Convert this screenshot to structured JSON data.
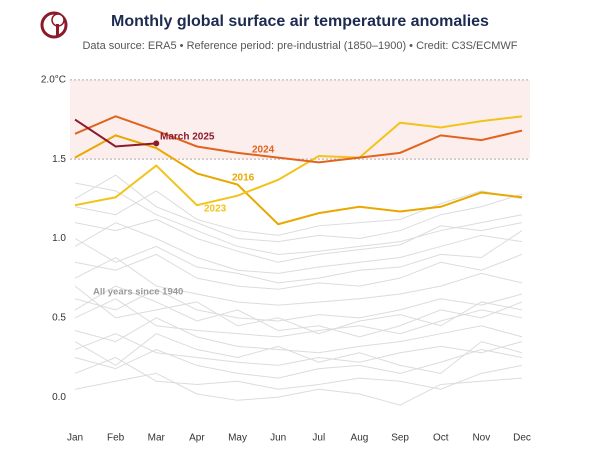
{
  "chart_data": {
    "type": "line",
    "title": "Monthly global surface air temperature anomalies",
    "subtitle": "Data source: ERA5 • Reference period: pre-industrial (1850–1900) • Credit: C3S/ECMWF",
    "categories": [
      "Jan",
      "Feb",
      "Mar",
      "Apr",
      "May",
      "Jun",
      "Jul",
      "Aug",
      "Sep",
      "Oct",
      "Nov",
      "Dec"
    ],
    "ylim": [
      -0.1,
      2.1
    ],
    "yticks": [
      {
        "value": 0,
        "label": "0.0"
      },
      0.5,
      {
        "value": 1,
        "label": "1.0"
      },
      1.5,
      {
        "value": 2,
        "label": "2.0°C"
      }
    ],
    "band": [
      1.5,
      2.0
    ],
    "series": [
      {
        "name": "2016",
        "color": "#e8a800",
        "values": [
          1.51,
          1.65,
          1.57,
          1.41,
          1.34,
          1.09,
          1.16,
          1.2,
          1.17,
          1.2,
          1.29,
          1.26
        ]
      },
      {
        "name": "2023",
        "color": "#f2c31a",
        "values": [
          1.21,
          1.26,
          1.46,
          1.21,
          1.27,
          1.37,
          1.52,
          1.51,
          1.73,
          1.7,
          1.74,
          1.77
        ]
      },
      {
        "name": "2024",
        "color": "#e0641e",
        "values": [
          1.66,
          1.77,
          1.68,
          1.58,
          1.54,
          1.51,
          1.48,
          1.51,
          1.54,
          1.65,
          1.62,
          1.68
        ]
      },
      {
        "name": "March 2025",
        "color": "#8b1a2b",
        "values": [
          1.75,
          1.58,
          1.6,
          null,
          null,
          null,
          null,
          null,
          null,
          null,
          null,
          null
        ]
      }
    ],
    "background": {
      "label": "All years since 1940",
      "color": "#dcdcdc",
      "values": [
        [
          1.35,
          1.3,
          1.15,
          1.05,
          0.95,
          0.9,
          0.92,
          0.95,
          0.98,
          1.05,
          1.1,
          1.15
        ],
        [
          1.25,
          1.4,
          1.2,
          1.1,
          1.0,
          0.98,
          1.02,
          1.0,
          1.05,
          1.15,
          1.2,
          1.28
        ],
        [
          1.1,
          1.05,
          1.12,
          1.0,
          0.92,
          0.85,
          0.9,
          0.93,
          0.96,
          1.08,
          1.05,
          1.1
        ],
        [
          0.95,
          1.1,
          1.0,
          0.88,
          0.8,
          0.78,
          0.82,
          0.85,
          0.88,
          0.95,
          1.02,
          0.98
        ],
        [
          0.85,
          0.8,
          0.9,
          0.75,
          0.7,
          0.68,
          0.72,
          0.7,
          0.75,
          0.85,
          0.8,
          0.9
        ],
        [
          0.75,
          0.88,
          0.7,
          0.65,
          0.6,
          0.58,
          0.6,
          0.62,
          0.65,
          0.7,
          0.78,
          0.72
        ],
        [
          0.62,
          0.55,
          0.68,
          0.55,
          0.5,
          0.48,
          0.52,
          0.5,
          0.55,
          0.62,
          0.58,
          0.65
        ],
        [
          0.5,
          0.62,
          0.45,
          0.42,
          0.4,
          0.38,
          0.42,
          0.45,
          0.4,
          0.48,
          0.55,
          0.5
        ],
        [
          0.42,
          0.35,
          0.5,
          0.38,
          0.32,
          0.3,
          0.28,
          0.32,
          0.35,
          0.4,
          0.45,
          0.38
        ],
        [
          0.3,
          0.4,
          0.28,
          0.25,
          0.22,
          0.2,
          0.25,
          0.22,
          0.28,
          0.32,
          0.28,
          0.35
        ],
        [
          0.25,
          0.18,
          0.3,
          0.2,
          0.15,
          0.12,
          0.18,
          0.2,
          0.15,
          0.22,
          0.3,
          0.25
        ],
        [
          0.15,
          0.25,
          0.1,
          0.08,
          0.1,
          0.05,
          0.08,
          0.12,
          0.1,
          0.05,
          0.15,
          0.2
        ],
        [
          0.05,
          0.1,
          0.15,
          0.02,
          -0.02,
          0.0,
          0.05,
          0.02,
          -0.05,
          0.08,
          0.1,
          0.12
        ],
        [
          0.7,
          0.5,
          0.55,
          0.6,
          0.45,
          0.5,
          0.4,
          0.48,
          0.52,
          0.45,
          0.6,
          0.55
        ],
        [
          1.0,
          0.85,
          0.95,
          0.82,
          0.78,
          0.72,
          0.75,
          0.8,
          0.82,
          0.9,
          0.88,
          1.05
        ],
        [
          0.55,
          0.7,
          0.6,
          0.48,
          0.55,
          0.42,
          0.45,
          0.38,
          0.45,
          0.55,
          0.5,
          0.6
        ],
        [
          0.35,
          0.2,
          0.4,
          0.3,
          0.25,
          0.32,
          0.22,
          0.28,
          0.2,
          0.15,
          0.35,
          0.28
        ],
        [
          1.2,
          1.15,
          1.3,
          1.12,
          1.05,
          1.02,
          1.08,
          1.1,
          1.12,
          1.22,
          1.3,
          1.25
        ]
      ]
    }
  }
}
